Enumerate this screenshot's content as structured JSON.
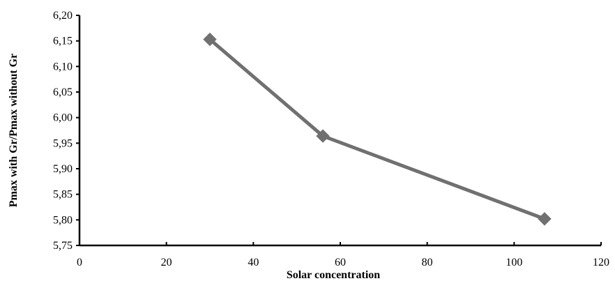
{
  "chart_data": {
    "type": "line",
    "title": "",
    "xlabel": "Solar concentration",
    "ylabel": "Pmax with Gr/Pmax without Gr",
    "xlim": [
      0,
      120
    ],
    "ylim": [
      5.75,
      6.2
    ],
    "x_ticks": [
      0,
      20,
      40,
      60,
      80,
      100,
      120
    ],
    "y_ticks": [
      5.75,
      5.8,
      5.85,
      5.9,
      5.95,
      6.0,
      6.05,
      6.1,
      6.15,
      6.2
    ],
    "x_tick_labels": [
      "0",
      "20",
      "40",
      "60",
      "80",
      "100",
      "120"
    ],
    "y_tick_labels": [
      "5,75",
      "5,80",
      "5,85",
      "5,90",
      "5,95",
      "6,00",
      "6,05",
      "6,10",
      "6,15",
      "6,20"
    ],
    "grid": false,
    "legend": "none",
    "series": [
      {
        "x": [
          30,
          56,
          107
        ],
        "y": [
          6.153,
          5.964,
          5.802
        ],
        "color": "#707070",
        "marker": "diamond"
      }
    ]
  }
}
